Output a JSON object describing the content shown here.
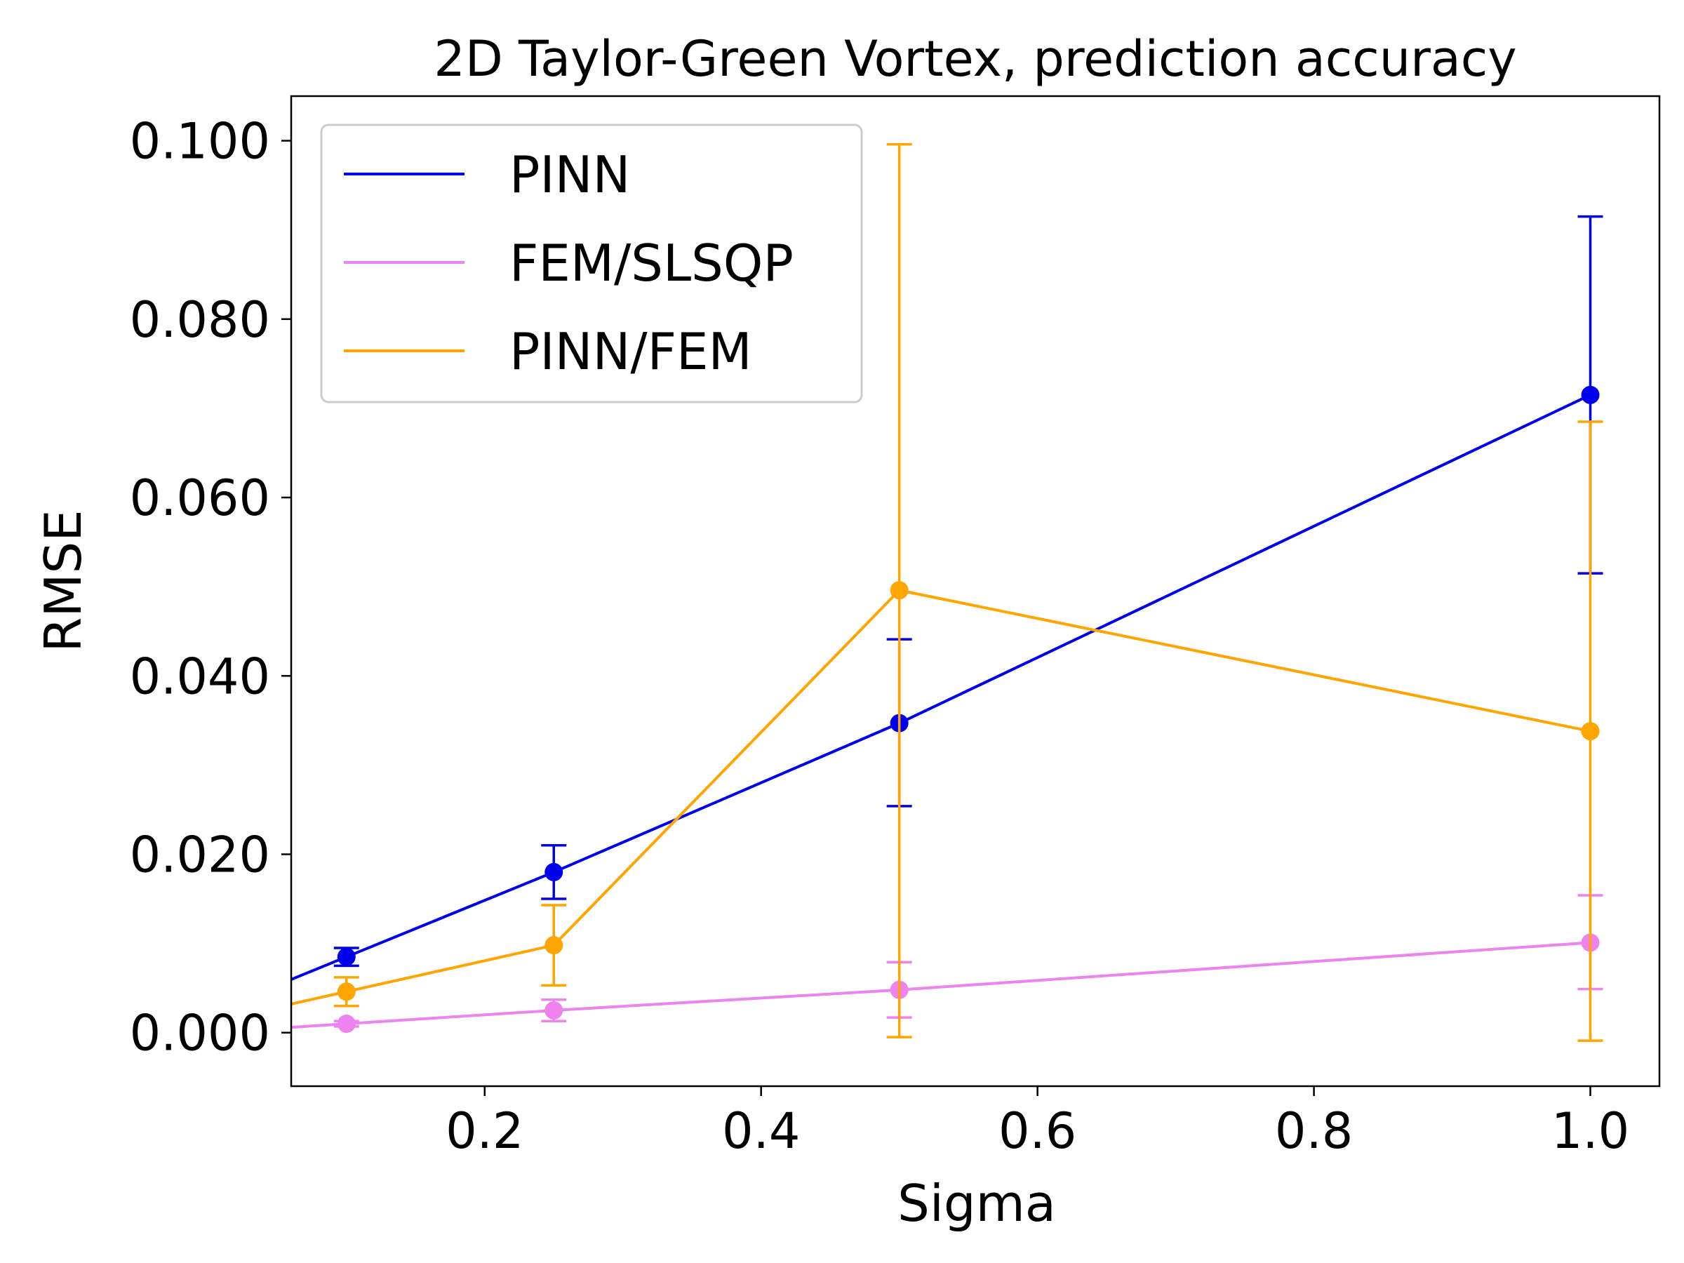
{
  "chart_data": {
    "type": "line",
    "title": "2D Taylor-Green Vortex, prediction accuracy",
    "xlabel": "Sigma",
    "ylabel": "RMSE",
    "xlim": [
      0.06,
      1.05
    ],
    "ylim": [
      -0.006,
      0.105
    ],
    "xticks": [
      {
        "value": 0.2,
        "label": "0.2"
      },
      {
        "value": 0.4,
        "label": "0.4"
      },
      {
        "value": 0.6,
        "label": "0.6"
      },
      {
        "value": 0.8,
        "label": "0.8"
      },
      {
        "value": 1.0,
        "label": "1.0"
      }
    ],
    "yticks": [
      {
        "value": 0.0,
        "label": "0.000"
      },
      {
        "value": 0.02,
        "label": "0.020"
      },
      {
        "value": 0.04,
        "label": "0.040"
      },
      {
        "value": 0.06,
        "label": "0.060"
      },
      {
        "value": 0.08,
        "label": "0.080"
      },
      {
        "value": 0.1,
        "label": "0.100"
      }
    ],
    "grid": false,
    "legend_position": "top-left",
    "x": [
      0.1,
      0.25,
      0.5,
      1.0
    ],
    "series": [
      {
        "name": "PINN",
        "color": "#0000ee",
        "values": [
          0.0085,
          0.018,
          0.0347,
          0.0715
        ],
        "err_low": [
          0.0075,
          0.015,
          0.0254,
          0.0515
        ],
        "err_high": [
          0.0095,
          0.021,
          0.0441,
          0.0915
        ]
      },
      {
        "name": "FEM/SLSQP",
        "color": "#ee82ee",
        "values": [
          0.001,
          0.0025,
          0.0048,
          0.0101
        ],
        "err_low": [
          0.0007,
          0.0013,
          0.0017,
          0.0049
        ],
        "err_high": [
          0.0013,
          0.0037,
          0.0079,
          0.0154
        ]
      },
      {
        "name": "PINN/FEM",
        "color": "#ffa500",
        "values": [
          0.0046,
          0.0098,
          0.0496,
          0.0338
        ],
        "err_low": [
          0.003,
          0.0053,
          -0.0005,
          -0.0009
        ],
        "err_high": [
          0.0062,
          0.0143,
          0.0996,
          0.0685
        ]
      }
    ]
  }
}
